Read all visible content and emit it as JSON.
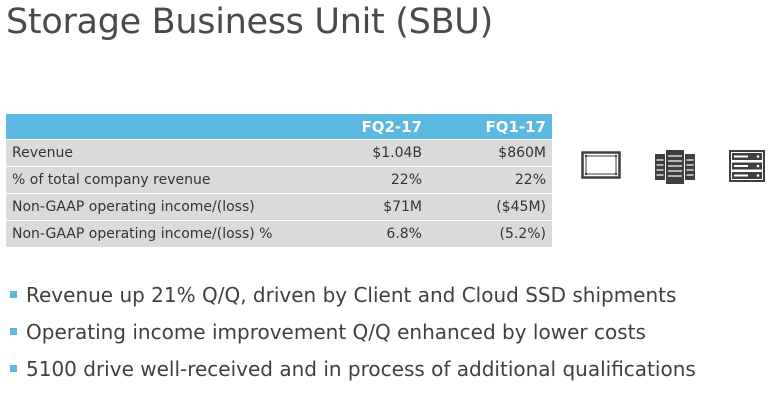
{
  "title": "Storage Business Unit (SBU)",
  "table": {
    "columns": [
      "",
      "FQ2-17",
      "FQ1-17"
    ],
    "rows": [
      {
        "metric": "Revenue",
        "fq2_17": "$1.04B",
        "fq1_17": "$860M"
      },
      {
        "metric": "% of total company revenue",
        "fq2_17": "22%",
        "fq1_17": "22%"
      },
      {
        "metric": "Non-GAAP operating income/(loss)",
        "fq2_17": "$71M",
        "fq1_17": "($45M)"
      },
      {
        "metric": "Non-GAAP operating income/(loss) %",
        "fq2_17": "6.8%",
        "fq1_17": "(5.2%)"
      }
    ]
  },
  "icons": [
    {
      "name": "ssd-drive-icon"
    },
    {
      "name": "server-rack-icon"
    },
    {
      "name": "storage-array-icon"
    }
  ],
  "bullets": [
    "Revenue up 21% Q/Q, driven by Client and Cloud SSD shipments",
    "Operating income improvement Q/Q enhanced by lower costs",
    "5100 drive well-received and in process of additional qualifications"
  ],
  "colors": {
    "accent": "#5bb8e0",
    "row_bg": "#dadada",
    "icon": "#3f3f3f"
  }
}
